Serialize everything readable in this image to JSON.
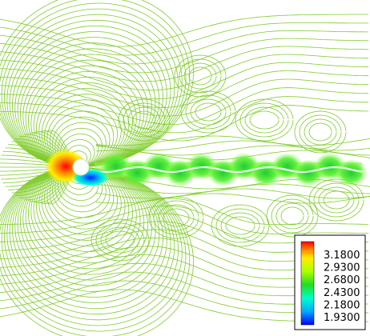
{
  "chart_data": {
    "type": "contour",
    "title": "",
    "xlabel": "",
    "ylabel": "",
    "grid": false,
    "legend_position": "bottom-right",
    "colorbar": {
      "ticks": [
        "3.1800",
        "2.9300",
        "2.6800",
        "2.4300",
        "2.1800",
        "1.9300"
      ],
      "range": [
        1.93,
        3.18
      ],
      "colormap": [
        "#0000ff",
        "#00aaff",
        "#00ffcc",
        "#22dd22",
        "#aaff00",
        "#ffee00",
        "#ff8800",
        "#ff0000"
      ]
    },
    "obstacle": "circular-cylinder",
    "wake_cores": [
      {
        "x": 0.08,
        "v": 2.68
      },
      {
        "x": 0.16,
        "v": 2.6
      },
      {
        "x": 0.24,
        "v": 2.62
      },
      {
        "x": 0.32,
        "v": 2.6
      },
      {
        "x": 0.4,
        "v": 2.62
      },
      {
        "x": 0.48,
        "v": 2.6
      },
      {
        "x": 0.56,
        "v": 2.62
      },
      {
        "x": 0.64,
        "v": 2.6
      },
      {
        "x": 0.72,
        "v": 2.62
      },
      {
        "x": 0.8,
        "v": 2.6
      },
      {
        "x": 0.88,
        "v": 2.62
      },
      {
        "x": 0.96,
        "v": 2.6
      }
    ]
  }
}
